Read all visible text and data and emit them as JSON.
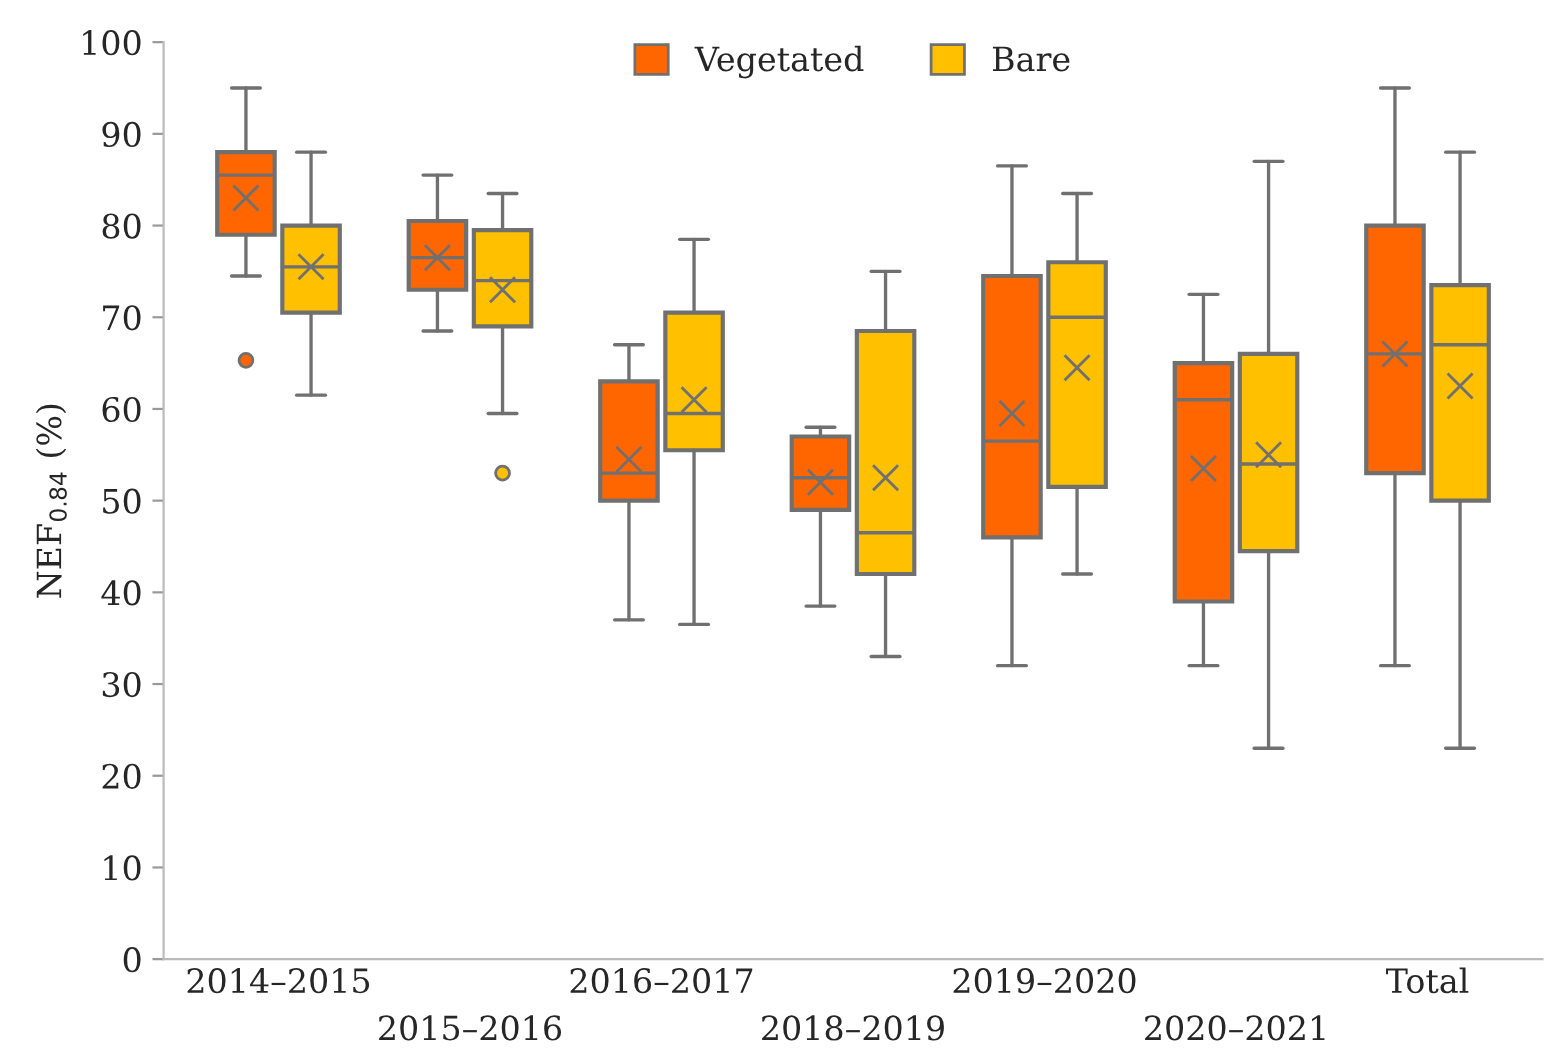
{
  "chart_data": {
    "type": "box",
    "ylabel": "NEF$_{0.84}$ (%)",
    "categories": [
      "2014–2015",
      "2015–2016",
      "2016–2017",
      "2018–2019",
      "2019–2020",
      "2020–2021",
      "Total"
    ],
    "ylim": [
      0,
      100
    ],
    "yticks": [
      0,
      10,
      20,
      30,
      40,
      50,
      60,
      70,
      80,
      90,
      100
    ],
    "grid": false,
    "legend": "top",
    "marker": "cross",
    "series": [
      {
        "name": "Vegetated",
        "color": "#ff6600",
        "boxes": [
          {
            "low": 74.5,
            "q1": 79,
            "median": 85.5,
            "q3": 88,
            "high": 95,
            "mean": 83,
            "outliers": [
              65.3
            ]
          },
          {
            "low": 68.5,
            "q1": 73,
            "median": 76.5,
            "q3": 80.5,
            "high": 85.5,
            "mean": 76.5
          },
          {
            "low": 37,
            "q1": 50,
            "median": 53,
            "q3": 63,
            "high": 67,
            "mean": 54.5
          },
          {
            "low": 38.5,
            "q1": 49,
            "median": 52.5,
            "q3": 57,
            "high": 58,
            "mean": 52
          },
          {
            "low": 32,
            "q1": 46,
            "median": 56.5,
            "q3": 74.5,
            "high": 86.5,
            "mean": 59.5
          },
          {
            "low": 32,
            "q1": 39,
            "median": 61,
            "q3": 65,
            "high": 72.5,
            "mean": 53.5
          },
          {
            "low": 32,
            "q1": 53,
            "median": 66,
            "q3": 80,
            "high": 95,
            "mean": 66
          }
        ]
      },
      {
        "name": "Bare",
        "color": "#ffc000",
        "boxes": [
          {
            "low": 61.5,
            "q1": 70.5,
            "median": 75.5,
            "q3": 80,
            "high": 88,
            "mean": 75.5
          },
          {
            "low": 59.5,
            "q1": 69,
            "median": 74,
            "q3": 79.5,
            "high": 83.5,
            "mean": 73,
            "outliers": [
              53
            ]
          },
          {
            "low": 36.5,
            "q1": 55.5,
            "median": 59.5,
            "q3": 70.5,
            "high": 78.5,
            "mean": 61
          },
          {
            "low": 33,
            "q1": 42,
            "median": 46.5,
            "q3": 68.5,
            "high": 75,
            "mean": 52.5
          },
          {
            "low": 42,
            "q1": 51.5,
            "median": 70,
            "q3": 76,
            "high": 83.5,
            "mean": 64.5
          },
          {
            "low": 23,
            "q1": 44.5,
            "median": 54,
            "q3": 66,
            "high": 87,
            "mean": 55
          },
          {
            "low": 23,
            "q1": 50,
            "median": 67,
            "q3": 73.5,
            "high": 88,
            "mean": 62.5
          }
        ]
      }
    ]
  }
}
